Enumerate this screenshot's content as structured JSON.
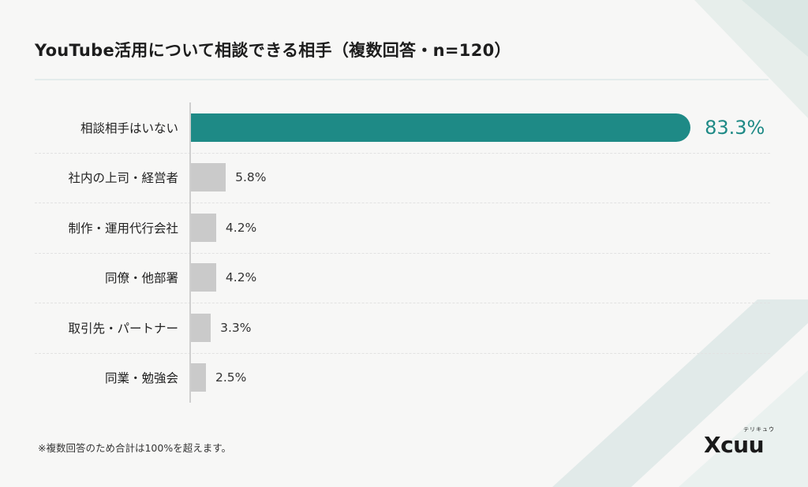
{
  "chart_data": {
    "type": "bar",
    "orientation": "horizontal",
    "title": "YouTube活用について相談できる相手（複数回答・n=120）",
    "categories": [
      "相談相手はいない",
      "社内の上司・経営者",
      "制作・運用代行会社",
      "同僚・他部署",
      "取引先・パートナー",
      "同業・勉強会"
    ],
    "values": [
      83.3,
      5.8,
      4.2,
      4.2,
      3.3,
      2.5
    ],
    "value_labels": [
      "83.3%",
      "5.8%",
      "4.2%",
      "4.2%",
      "3.3%",
      "2.5%"
    ],
    "unit": "%",
    "xlim": [
      0,
      100
    ],
    "highlight_index": 0,
    "grid": false,
    "colors": {
      "highlight": "#1e8a86",
      "default": "#cacaca"
    }
  },
  "footnote": "※複数回答のため合計は100%を超えます。",
  "logo": {
    "text": "Xcuu",
    "kana": "テリキュウ"
  }
}
